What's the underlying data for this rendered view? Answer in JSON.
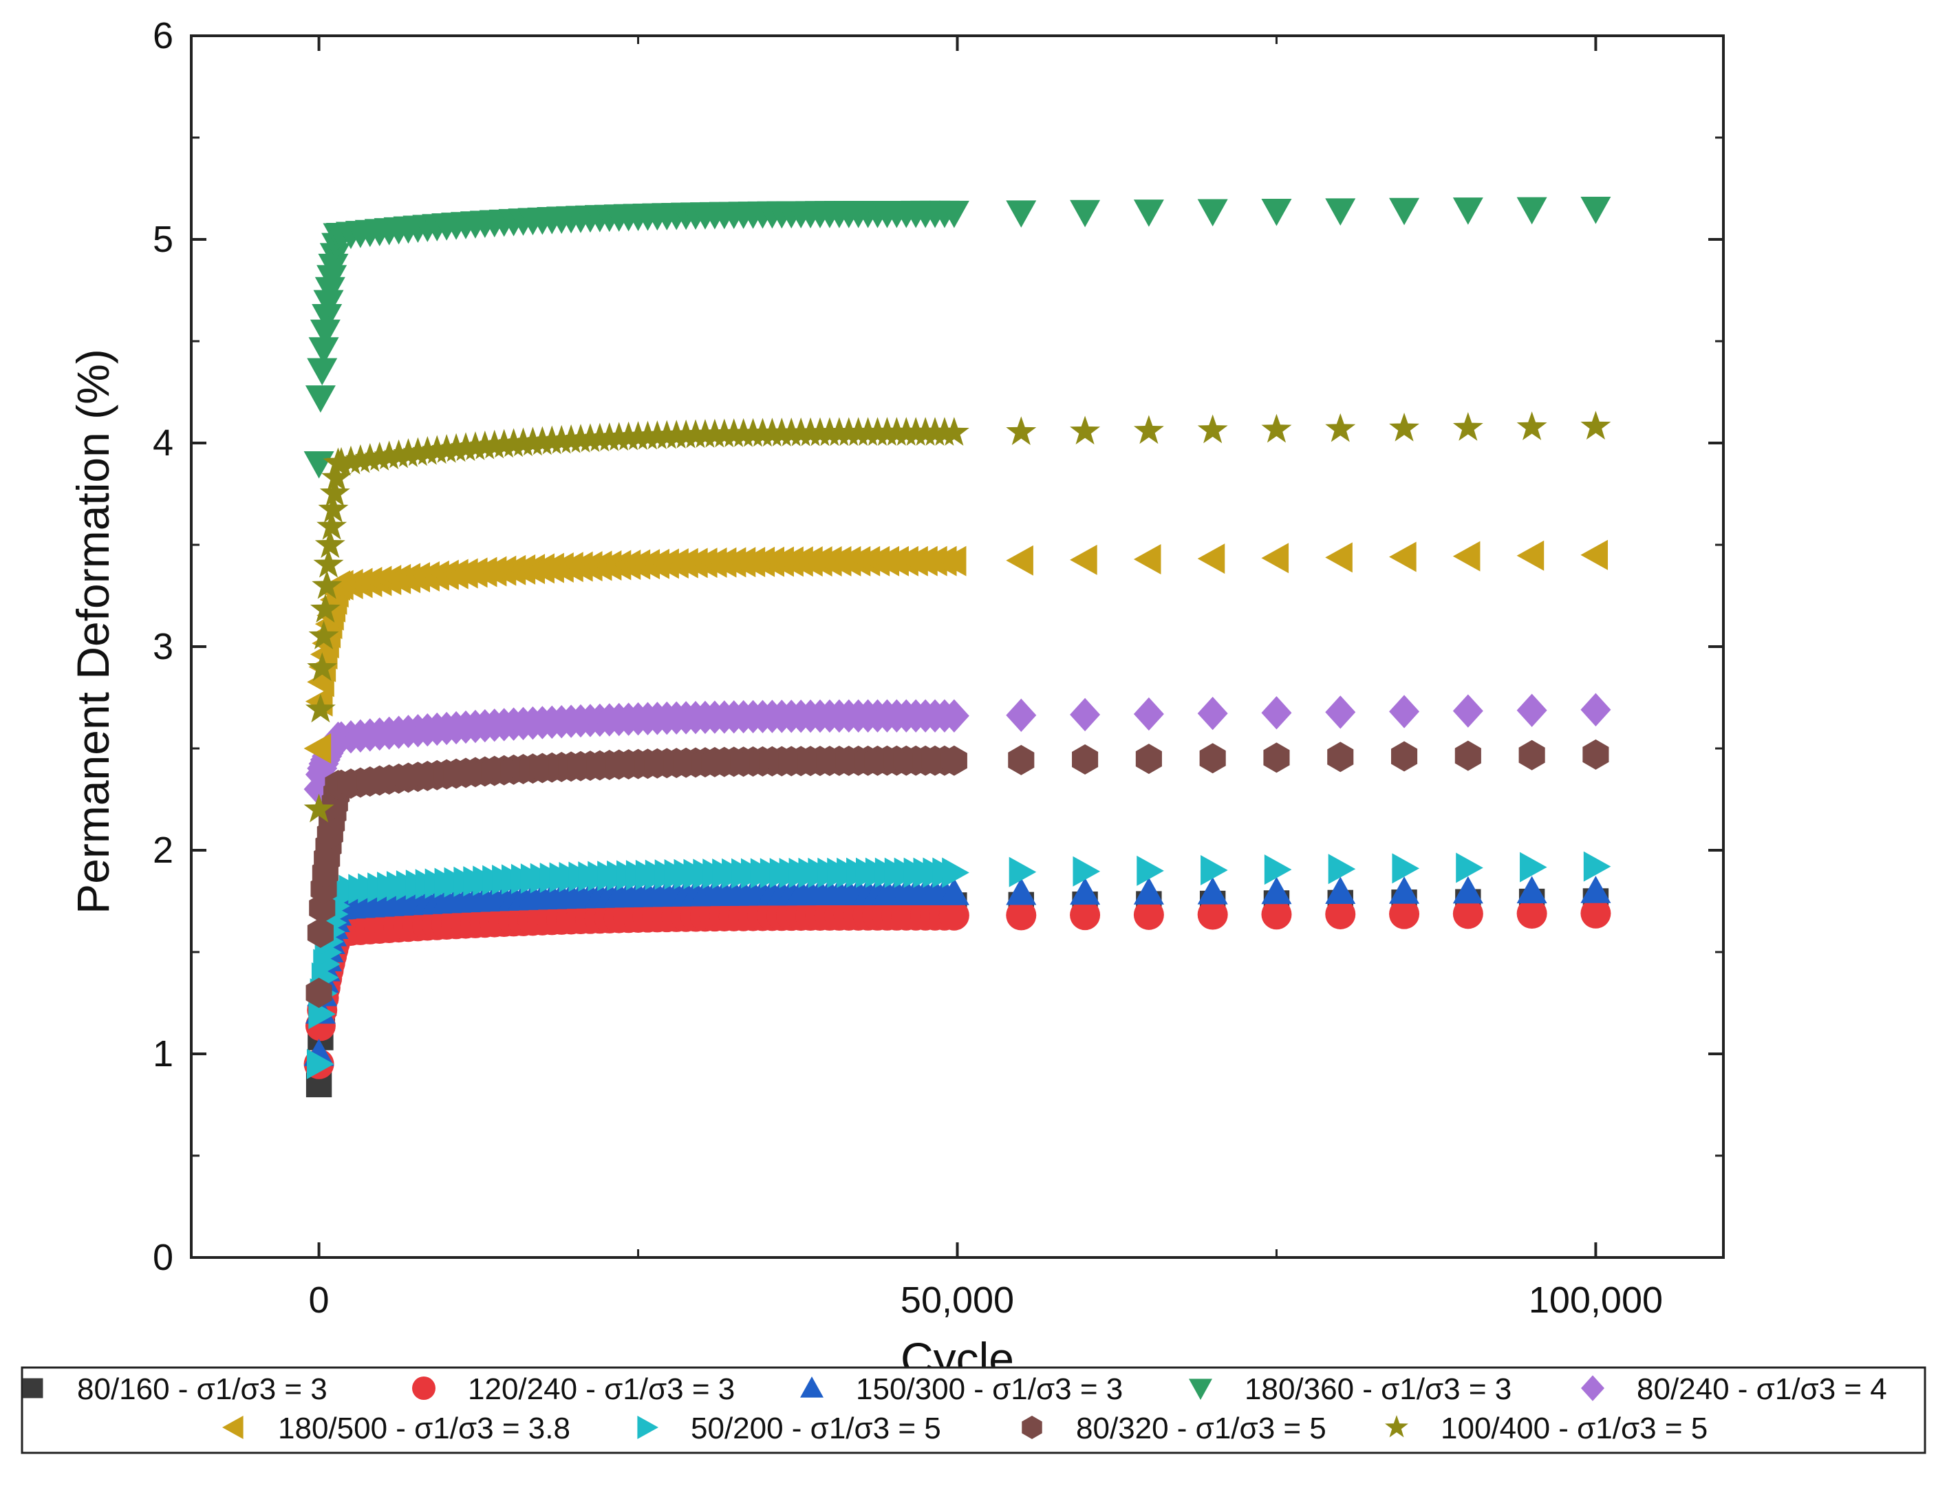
{
  "chart_data": {
    "type": "scatter",
    "xlabel": "Cycle",
    "ylabel": "Permanent Deformation (%)",
    "xlim": [
      -10000,
      110000
    ],
    "ylim": [
      0,
      6
    ],
    "x_ticks": [
      0,
      50000,
      100000
    ],
    "x_tick_labels": [
      "0",
      "50,000",
      "100,000"
    ],
    "y_ticks": [
      0,
      1,
      2,
      3,
      4,
      5,
      6
    ],
    "y_tick_labels": [
      "0",
      "1",
      "2",
      "3",
      "4",
      "5",
      "6"
    ],
    "grid": false,
    "legend_position": "bottom",
    "series": [
      {
        "name": "80/160 - σ1/σ3 = 3",
        "marker": "square",
        "color": "#3a3a3a",
        "start": 0.85,
        "knee": 1.65,
        "end50k": 1.73,
        "end100k": 1.75
      },
      {
        "name": "120/240 - σ1/σ3 = 3",
        "marker": "circle",
        "color": "#e8373b",
        "start": 0.95,
        "knee": 1.6,
        "end50k": 1.68,
        "end100k": 1.69
      },
      {
        "name": "150/300 - σ1/σ3 = 3",
        "marker": "triangle-up",
        "color": "#1f5fc8",
        "start": 1.0,
        "knee": 1.72,
        "end50k": 1.79,
        "end100k": 1.8
      },
      {
        "name": "180/360 - σ1/σ3 = 3",
        "marker": "triangle-down",
        "color": "#2f9e63",
        "start": 3.9,
        "knee": 5.02,
        "end50k": 5.13,
        "end100k": 5.15
      },
      {
        "name": "80/240 - σ1/σ3 = 4",
        "marker": "diamond",
        "color": "#a872d8",
        "start": 2.3,
        "knee": 2.55,
        "end50k": 2.66,
        "end100k": 2.69
      },
      {
        "name": "180/500 - σ1/σ3 = 3.8",
        "marker": "triangle-left",
        "color": "#c9a018",
        "start": 2.5,
        "knee": 3.3,
        "end50k": 3.42,
        "end100k": 3.45
      },
      {
        "name": "50/200 - σ1/σ3 = 5",
        "marker": "triangle-right",
        "color": "#1fbcc8",
        "start": 0.95,
        "knee": 1.8,
        "end50k": 1.89,
        "end100k": 1.92
      },
      {
        "name": "80/320 - σ1/σ3 = 5",
        "marker": "hexagon",
        "color": "#7a4a47",
        "start": 1.3,
        "knee": 2.32,
        "end50k": 2.44,
        "end100k": 2.47
      },
      {
        "name": "100/400 - σ1/σ3 = 5",
        "marker": "star",
        "color": "#8e8a14",
        "start": 2.2,
        "knee": 3.9,
        "end50k": 4.05,
        "end100k": 4.08
      }
    ]
  }
}
